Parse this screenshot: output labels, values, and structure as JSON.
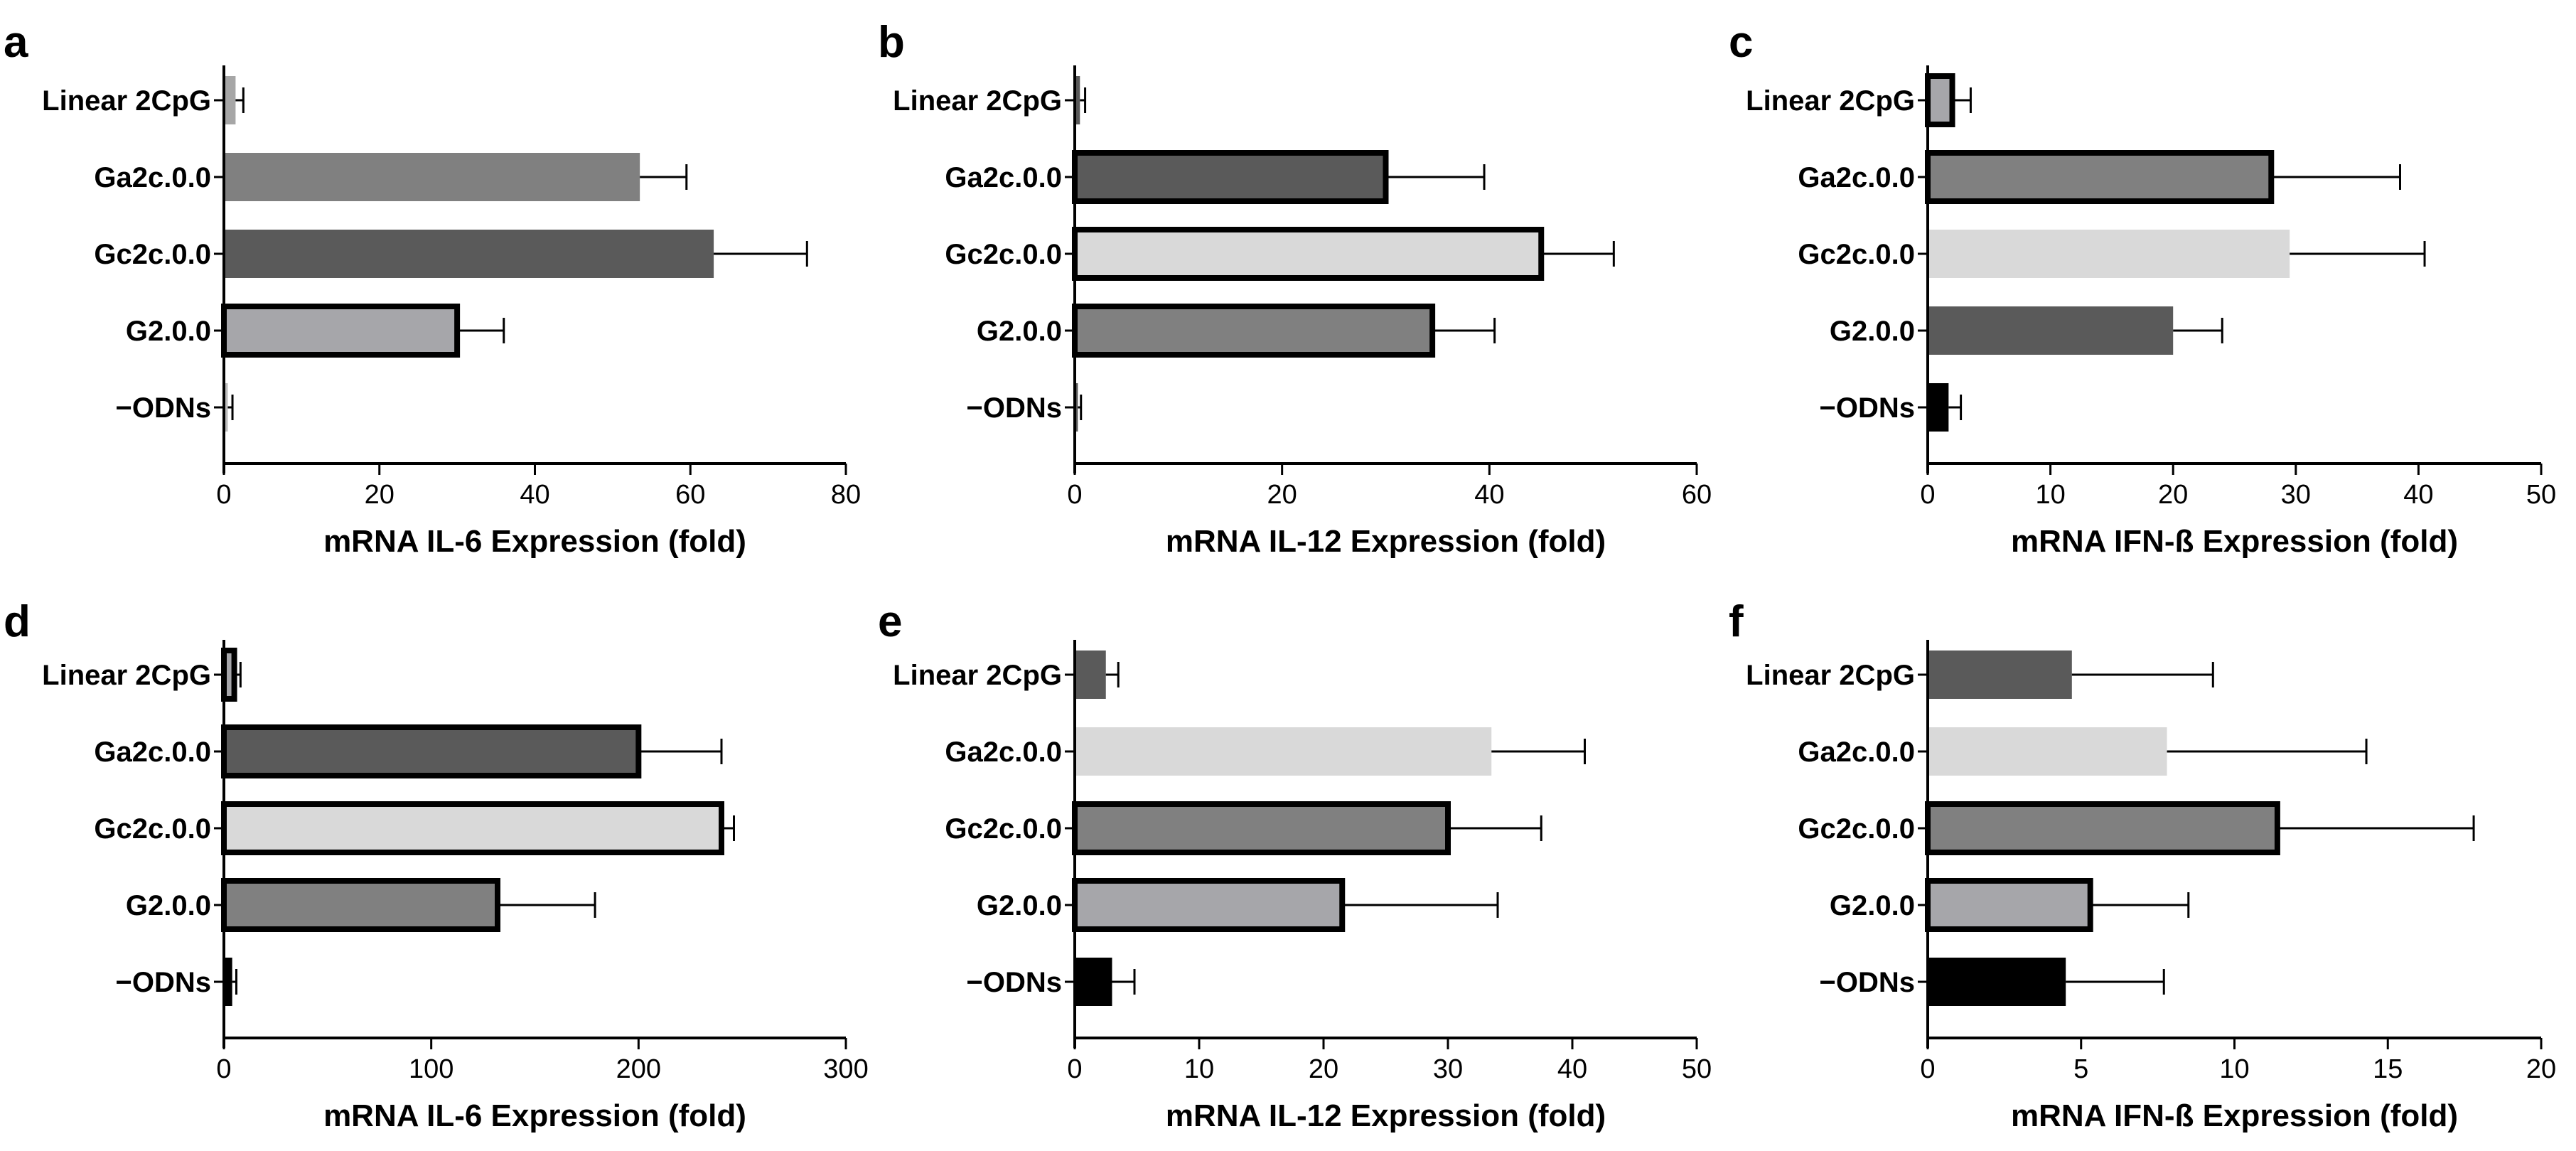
{
  "chart_data": [
    {
      "panel": "a",
      "type": "bar",
      "orientation": "horizontal",
      "categories": [
        "Linear 2CpG",
        "Ga2c.0.0",
        "Gc2c.0.0",
        "G2.0.0",
        "−ODNs"
      ],
      "values": [
        1.5,
        53.5,
        63,
        30,
        0.5
      ],
      "errors": [
        1,
        6,
        12,
        6,
        0.6
      ],
      "colors": [
        "#a6a6a6",
        "#808080",
        "#5a5a5a",
        "#a6a6aa",
        "#bdbdbd"
      ],
      "bold_border": [
        false,
        false,
        false,
        true,
        false
      ],
      "xlabel": "mRNA IL-6 Expression (fold)",
      "xlim": [
        0,
        80
      ],
      "xticks": [
        0,
        20,
        40,
        60,
        80
      ]
    },
    {
      "panel": "b",
      "type": "bar",
      "orientation": "horizontal",
      "categories": [
        "Linear 2CpG",
        "Ga2c.0.0",
        "Gc2c.0.0",
        "G2.0.0",
        "−ODNs"
      ],
      "values": [
        0.5,
        30,
        45,
        34.5,
        0.3
      ],
      "errors": [
        0.5,
        9.5,
        7,
        6,
        0.3
      ],
      "colors": [
        "#595959",
        "#5a5a5a",
        "#d9d9d9",
        "#808080",
        "#595959"
      ],
      "bold_border": [
        false,
        true,
        true,
        true,
        false
      ],
      "xlabel": "mRNA IL-12 Expression (fold)",
      "xlim": [
        0,
        60
      ],
      "xticks": [
        0,
        20,
        40,
        60
      ]
    },
    {
      "panel": "c",
      "type": "bar",
      "orientation": "horizontal",
      "categories": [
        "Linear 2CpG",
        "Ga2c.0.0",
        "Gc2c.0.0",
        "G2.0.0",
        "−ODNs"
      ],
      "values": [
        2,
        28,
        29.5,
        20,
        1.7
      ],
      "errors": [
        1.5,
        10.5,
        11,
        4,
        1
      ],
      "colors": [
        "#a6a6aa",
        "#808080",
        "#d9d9d9",
        "#5a5a5a",
        "#000000"
      ],
      "bold_border": [
        true,
        true,
        false,
        false,
        false
      ],
      "xlabel": "mRNA IFN-ß Expression (fold)",
      "xlim": [
        0,
        50
      ],
      "xticks": [
        0,
        10,
        20,
        30,
        40,
        50
      ]
    },
    {
      "panel": "d",
      "type": "bar",
      "orientation": "horizontal",
      "categories": [
        "Linear 2CpG",
        "Ga2c.0.0",
        "Gc2c.0.0",
        "G2.0.0",
        "−ODNs"
      ],
      "values": [
        5,
        200,
        240,
        132,
        4
      ],
      "errors": [
        3,
        40,
        6,
        47,
        2
      ],
      "colors": [
        "#a6a6aa",
        "#5a5a5a",
        "#d9d9d9",
        "#808080",
        "#000000"
      ],
      "bold_border": [
        true,
        true,
        true,
        true,
        false
      ],
      "xlabel": "mRNA IL-6 Expression (fold)",
      "xlim": [
        0,
        300
      ],
      "xticks": [
        0,
        100,
        200,
        300
      ]
    },
    {
      "panel": "e",
      "type": "bar",
      "orientation": "horizontal",
      "categories": [
        "Linear 2CpG",
        "Ga2c.0.0",
        "Gc2c.0.0",
        "G2.0.0",
        "−ODNs"
      ],
      "values": [
        2.5,
        33.5,
        30,
        21.5,
        3
      ],
      "errors": [
        1,
        7.5,
        7.5,
        12.5,
        1.8
      ],
      "colors": [
        "#5a5a5a",
        "#d9d9d9",
        "#808080",
        "#a6a6aa",
        "#000000"
      ],
      "bold_border": [
        false,
        false,
        true,
        true,
        false
      ],
      "xlabel": "mRNA IL-12 Expression (fold)",
      "xlim": [
        0,
        50
      ],
      "xticks": [
        0,
        10,
        20,
        30,
        40,
        50
      ]
    },
    {
      "panel": "f",
      "type": "bar",
      "orientation": "horizontal",
      "categories": [
        "Linear 2CpG",
        "Ga2c.0.0",
        "Gc2c.0.0",
        "G2.0.0",
        "−ODNs"
      ],
      "values": [
        4.7,
        7.8,
        11.4,
        5.3,
        4.5
      ],
      "errors": [
        4.6,
        6.5,
        6.4,
        3.2,
        3.2
      ],
      "colors": [
        "#5a5a5a",
        "#d9d9d9",
        "#808080",
        "#a6a6aa",
        "#000000"
      ],
      "bold_border": [
        false,
        false,
        true,
        true,
        false
      ],
      "xlabel": "mRNA IFN-ß Expression (fold)",
      "xlim": [
        0,
        20
      ],
      "xticks": [
        0,
        5,
        10,
        15,
        20
      ]
    }
  ]
}
